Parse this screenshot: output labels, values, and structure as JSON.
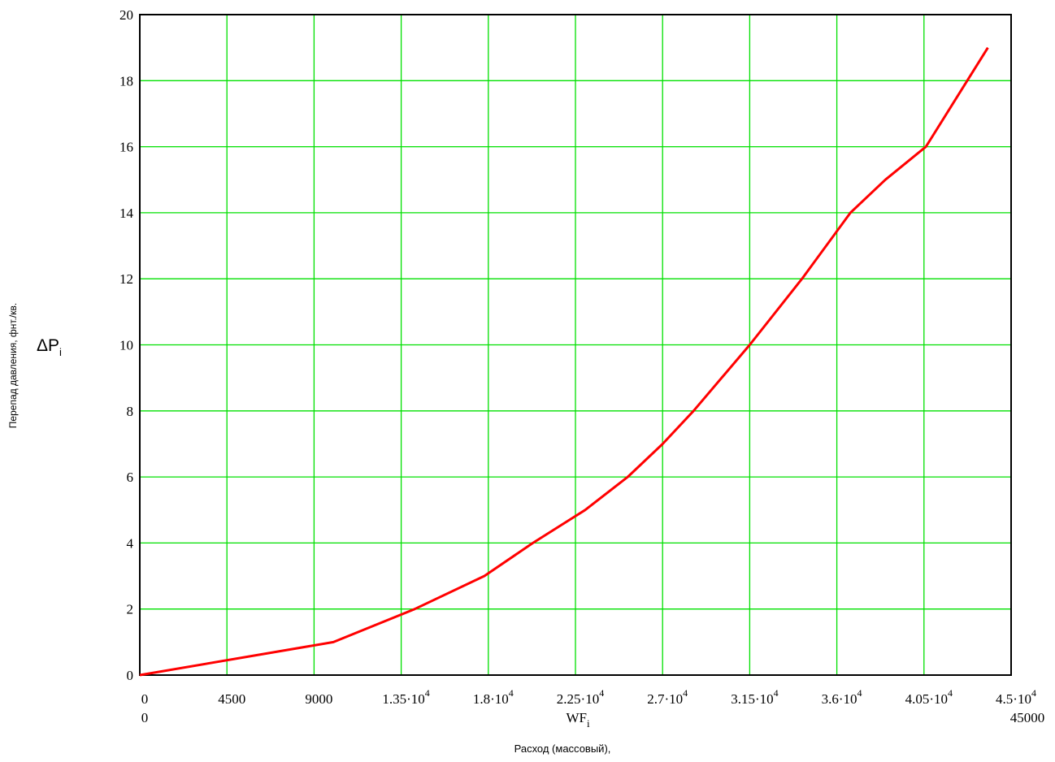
{
  "chart_data": {
    "type": "line",
    "title": "",
    "xlabel": "Расход (массовый),",
    "ylabel": "Перепад давления, фнт./кв.",
    "x_var": "WF",
    "x_var_sub": "i",
    "y_var": "ΔP",
    "y_var_sub": "i",
    "xlim": [
      0,
      45000
    ],
    "ylim": [
      0,
      20
    ],
    "x_range_min_label": "0",
    "x_range_max_label": "45000",
    "x_ticks": [
      {
        "value": 0,
        "base": "0",
        "exp": ""
      },
      {
        "value": 4500,
        "base": "4500",
        "exp": ""
      },
      {
        "value": 9000,
        "base": "9000",
        "exp": ""
      },
      {
        "value": 13500,
        "base": "1.35·10",
        "exp": "4"
      },
      {
        "value": 18000,
        "base": "1.8·10",
        "exp": "4"
      },
      {
        "value": 22500,
        "base": "2.25·10",
        "exp": "4"
      },
      {
        "value": 27000,
        "base": "2.7·10",
        "exp": "4"
      },
      {
        "value": 31500,
        "base": "3.15·10",
        "exp": "4"
      },
      {
        "value": 36000,
        "base": "3.6·10",
        "exp": "4"
      },
      {
        "value": 40500,
        "base": "4.05·10",
        "exp": "4"
      },
      {
        "value": 45000,
        "base": "4.5·10",
        "exp": "4"
      }
    ],
    "y_ticks": [
      0,
      2,
      4,
      6,
      8,
      10,
      12,
      14,
      16,
      18,
      20
    ],
    "grid": true,
    "grid_color": "#00e000",
    "series": [
      {
        "color": "#ff0000",
        "x": [
          0,
          10000,
          14200,
          17800,
          20300,
          23000,
          25200,
          27000,
          28600,
          31500,
          34200,
          36700,
          38500,
          40600,
          43800
        ],
        "y": [
          0,
          1,
          2,
          3,
          4,
          5,
          6,
          7,
          8,
          10,
          12,
          14,
          15,
          16,
          19
        ]
      }
    ]
  }
}
